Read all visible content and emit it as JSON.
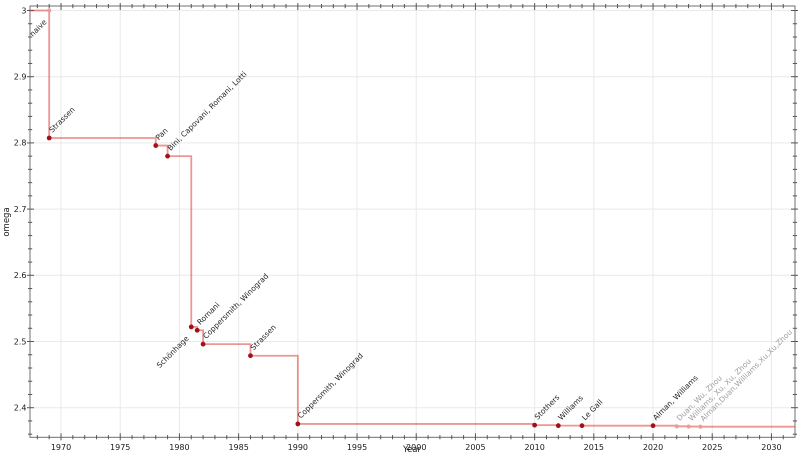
{
  "chart_data": {
    "type": "line",
    "step_style": "step-after",
    "title": "",
    "legend": "none",
    "grid": "major",
    "x_axis": {
      "label": "Year",
      "min": 1967.38,
      "max": 2031.99,
      "major_ticks": [
        1970,
        1975,
        1980,
        1985,
        1990,
        1995,
        2000,
        2005,
        2010,
        2015,
        2020,
        2025,
        2030
      ],
      "minor_step": 1
    },
    "y_axis": {
      "label": "omega",
      "min": 2.3553,
      "max": 3.0068,
      "major_ticks": [
        {
          "value": 3.0,
          "label": "3"
        },
        {
          "value": 2.9,
          "label": "2.9"
        },
        {
          "value": 2.8,
          "label": "2.8"
        },
        {
          "value": 2.7,
          "label": "2.7"
        },
        {
          "value": 2.6,
          "label": "2.6"
        },
        {
          "value": 2.5,
          "label": "2.5"
        },
        {
          "value": 2.4,
          "label": "2.4"
        }
      ],
      "minor_step": 0.02
    },
    "style": {
      "line_color": "rgba(220,45,40,0.5)",
      "line_width": 1.8,
      "marker_dark": "#a31118",
      "marker_light": "#ec9b9b",
      "label_dark": "#262626",
      "label_grey": "#a0a0a0",
      "background": "#ffffff"
    },
    "points": [
      {
        "label": "naive",
        "year": 1969,
        "omega": 3,
        "marker": "light",
        "label_style": "dark",
        "label_anchor": "sw"
      },
      {
        "label": "Strassen",
        "year": 1969,
        "omega": 2.8074,
        "marker": "dark",
        "label_style": "dark",
        "label_anchor": "ne"
      },
      {
        "label": "Pan",
        "year": 1978,
        "omega": 2.796,
        "marker": "dark",
        "label_style": "dark",
        "label_anchor": "ne"
      },
      {
        "label": "Bini, Capovani, Romani, Lotti",
        "year": 1979,
        "omega": 2.78,
        "marker": "dark",
        "label_style": "dark",
        "label_anchor": "ne"
      },
      {
        "label": "Schönhage",
        "year": 1981,
        "omega": 2.522,
        "marker": "dark",
        "label_style": "dark",
        "label_anchor": "sw"
      },
      {
        "label": "Romani",
        "year": 1981.5,
        "omega": 2.517,
        "marker": "dark",
        "label_style": "dark",
        "label_anchor": "ne"
      },
      {
        "label": "Coppersmith, Winograd",
        "year": 1982,
        "omega": 2.496,
        "marker": "dark",
        "label_style": "dark",
        "label_anchor": "ne"
      },
      {
        "label": "Strassen",
        "year": 1986,
        "omega": 2.4785,
        "marker": "dark",
        "label_style": "dark",
        "label_anchor": "ne"
      },
      {
        "label": "Coppersmith, Winograd",
        "year": 1990,
        "omega": 2.3755,
        "marker": "dark",
        "label_style": "dark",
        "label_anchor": "ne"
      },
      {
        "label": "Stothers",
        "year": 2010,
        "omega": 2.3737,
        "marker": "dark",
        "label_style": "dark",
        "label_anchor": "ne"
      },
      {
        "label": "Williams",
        "year": 2012,
        "omega": 2.3729,
        "marker": "dark",
        "label_style": "dark",
        "label_anchor": "ne"
      },
      {
        "label": "Le Gall",
        "year": 2014,
        "omega": 2.3728639,
        "marker": "dark",
        "label_style": "dark",
        "label_anchor": "ne"
      },
      {
        "label": "Alman, Williams",
        "year": 2020,
        "omega": 2.3728596,
        "marker": "dark",
        "label_style": "dark",
        "label_anchor": "ne"
      },
      {
        "label": "Duan, Wu, Zhou",
        "year": 2022,
        "omega": 2.371866,
        "marker": "light",
        "label_style": "grey",
        "label_anchor": "ne"
      },
      {
        "label": "Williams, Xu, Xu, Zhou",
        "year": 2023,
        "omega": 2.371552,
        "marker": "light",
        "label_style": "grey",
        "label_anchor": "ne"
      },
      {
        "label": "Alman,Duan,Williams,Xu,Xu,Zhou",
        "year": 2024,
        "omega": 2.371339,
        "marker": "light",
        "label_style": "grey",
        "label_anchor": "ne"
      }
    ]
  }
}
